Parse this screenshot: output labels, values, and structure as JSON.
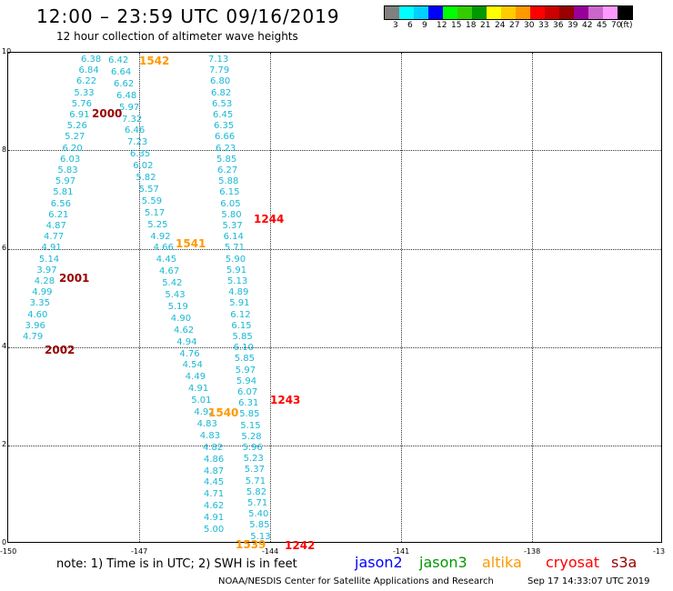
{
  "title": "12:00 – 23:59 UTC 09/16/2019",
  "subtitle": "12 hour collection of altimeter wave heights",
  "legend": {
    "colors": [
      "#808080",
      "#00ffff",
      "#00cfff",
      "#0000ff",
      "#00ff00",
      "#33cc00",
      "#009900",
      "#ffff00",
      "#ffcc00",
      "#ff9900",
      "#ff0000",
      "#cc0000",
      "#990000",
      "#990099",
      "#cc66cc",
      "#ff99ff",
      "#000000"
    ],
    "labels": [
      "3",
      "6",
      "9",
      "12",
      "15",
      "18",
      "21",
      "24",
      "27",
      "30",
      "33",
      "36",
      "39",
      "42",
      "45",
      "70",
      "(ft)"
    ]
  },
  "axes": {
    "x_ticks": [
      "-150",
      "-147",
      "-144",
      "-141",
      "-138",
      "-13"
    ],
    "y_ticks": [
      "10",
      "8",
      "6",
      "4",
      "2",
      "0"
    ]
  },
  "tracks": [
    {
      "name": "track-a",
      "values": [
        "6.38",
        "6.84",
        "6.22",
        "5.33",
        "5.76",
        "6.91",
        "5.26",
        "5.27",
        "6.20",
        "6.03",
        "5.83",
        "5.97",
        "5.81",
        "6.56",
        "6.21",
        "4.87",
        "4.77",
        "4.91",
        "5.14",
        "3.97",
        "4.28",
        "4.99",
        "3.35",
        "4.60",
        "3.96",
        "4.79"
      ]
    },
    {
      "name": "track-b",
      "values": [
        "6.42",
        "6.64",
        "6.62",
        "6.48",
        "5.97",
        "7.32",
        "6.46",
        "7.23",
        "6.35",
        "6.02",
        "5.82",
        "5.57",
        "5.59",
        "5.17",
        "5.25",
        "4.92",
        "4.66",
        "4.45",
        "4.67",
        "5.42",
        "5.43",
        "5.19",
        "4.90",
        "4.62",
        "4.94",
        "4.76",
        "4.54",
        "4.49",
        "4.91",
        "5.01",
        "4.92",
        "4.83",
        "4.83",
        "4.82",
        "4.86",
        "4.87",
        "4.45",
        "4.71",
        "4.62",
        "4.91",
        "5.00"
      ]
    },
    {
      "name": "track-c",
      "values": [
        "7.13",
        "7.79",
        "6.80",
        "6.82",
        "6.53",
        "6.45",
        "6.35",
        "6.66",
        "6.23",
        "5.85",
        "6.27",
        "5.88",
        "6.15",
        "6.05",
        "5.80",
        "5.37",
        "6.14",
        "5.71",
        "5.90",
        "5.91",
        "5.13",
        "4.89",
        "5.91",
        "6.12",
        "6.15",
        "5.85",
        "6.10",
        "5.85",
        "5.97",
        "5.94",
        "6.07",
        "6.31",
        "5.85",
        "5.15",
        "5.28",
        "5.96",
        "5.23",
        "5.37",
        "5.71",
        "5.82",
        "5.71",
        "5.40",
        "5.85",
        "5.13"
      ]
    }
  ],
  "time_labels": [
    {
      "text": "1542",
      "color": "#ff9900"
    },
    {
      "text": "2000",
      "color": "#990000"
    },
    {
      "text": "1244",
      "color": "#ff0000"
    },
    {
      "text": "1541",
      "color": "#ff9900"
    },
    {
      "text": "2001",
      "color": "#990000"
    },
    {
      "text": "2002",
      "color": "#990000"
    },
    {
      "text": "1243",
      "color": "#ff0000"
    },
    {
      "text": "1540",
      "color": "#ff9900"
    },
    {
      "text": "1539",
      "color": "#ff9900"
    },
    {
      "text": "1242",
      "color": "#ff0000"
    }
  ],
  "note": "note: 1) Time is in UTC; 2) SWH is in feet",
  "satellites": [
    {
      "name": "jason2",
      "color": "#0000ff"
    },
    {
      "name": "jason3",
      "color": "#009900"
    },
    {
      "name": "altika",
      "color": "#ff9900"
    },
    {
      "name": "cryosat",
      "color": "#ff0000"
    },
    {
      "name": "s3a",
      "color": "#990000"
    }
  ],
  "credit": "NOAA/NESDIS Center for Satellite Applications and Research",
  "timestamp": "Sep 17 14:33:07 UTC 2019"
}
